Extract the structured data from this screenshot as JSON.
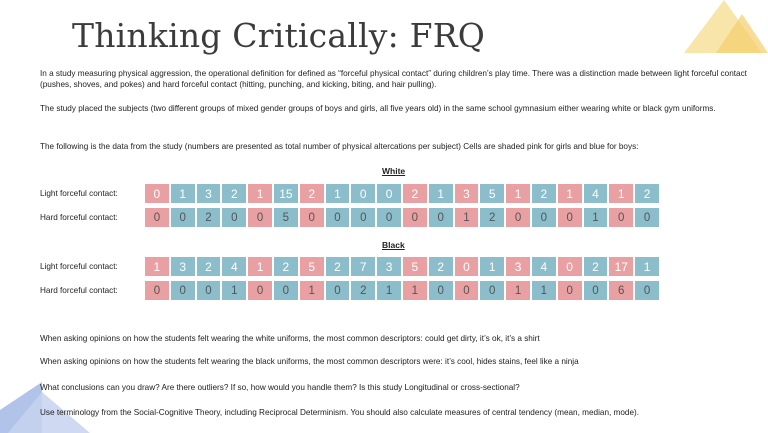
{
  "title": "Thinking Critically: FRQ",
  "paragraphs": {
    "p1": "In a study measuring physical aggression, the operational definition for defined as “forceful physical contact” during children’s play time. There was a distinction made between light forceful contact (pushes, shoves, and pokes) and hard forceful contact (hitting, punching, and kicking, biting, and hair pulling).",
    "p2": "The study placed the subjects (two different groups of mixed gender groups of boys and girls, all five years old) in the same school gymnasium either wearing white or black gym uniforms.",
    "p3": "The following is the data from the study (numbers are presented as total number of physical altercations per subject) Cells are shaded pink for girls and blue for boys:",
    "p4": "When asking opinions on how the students felt wearing the white uniforms, the most common descriptors: could get dirty, it’s ok, it’s a shirt",
    "p5": "When asking opinions on how the students felt wearing the black uniforms, the most common descriptors were: it’s cool, hides stains, feel like a ninja",
    "p6": "What conclusions can you draw? Are there outliers? If so, how would you handle them? Is this study Longitudinal or cross-sectional?",
    "p7": "Use terminology from the  Social-Cognitive Theory, including Reciprocal Determinism. You should also calculate measures of central tendency (mean, median, mode)."
  },
  "headings": {
    "white": "White",
    "black": "Black"
  },
  "row_labels": {
    "light": "Light forceful contact:",
    "hard": "Hard forceful contact:"
  },
  "colors": {
    "girls": "#e9a0a3",
    "boys": "#8bbdca"
  },
  "cell_genders": [
    "pink",
    "blue",
    "blue",
    "blue",
    "pink",
    "blue",
    "pink",
    "blue",
    "blue",
    "blue",
    "pink",
    "blue",
    "pink",
    "blue",
    "pink",
    "blue",
    "pink",
    "blue",
    "pink",
    "blue"
  ],
  "white": {
    "light": [
      "0",
      "1",
      "3",
      "2",
      "1",
      "15",
      "2",
      "1",
      "0",
      "0",
      "2",
      "1",
      "3",
      "5",
      "1",
      "2",
      "1",
      "4",
      "1",
      "2"
    ],
    "hard": [
      "0",
      "0",
      "2",
      "0",
      "0",
      "5",
      "0",
      "0",
      "0",
      "0",
      "0",
      "0",
      "1",
      "2",
      "0",
      "0",
      "0",
      "1",
      "0",
      "0"
    ]
  },
  "black": {
    "light": [
      "1",
      "3",
      "2",
      "4",
      "1",
      "2",
      "5",
      "2",
      "7",
      "3",
      "5",
      "2",
      "0",
      "1",
      "3",
      "4",
      "0",
      "2",
      "17",
      "1"
    ],
    "hard": [
      "0",
      "0",
      "0",
      "1",
      "0",
      "0",
      "1",
      "0",
      "2",
      "1",
      "1",
      "0",
      "0",
      "0",
      "1",
      "1",
      "0",
      "0",
      "6",
      "0"
    ]
  }
}
